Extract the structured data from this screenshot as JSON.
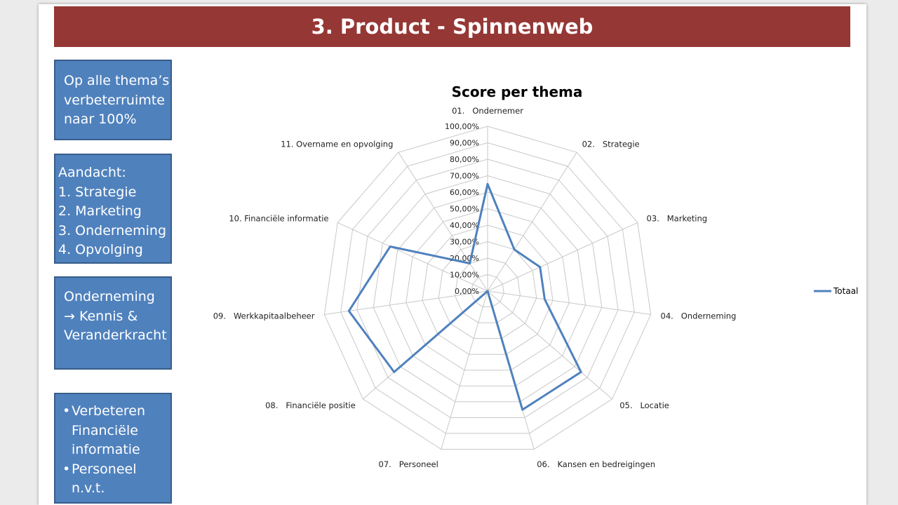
{
  "slide": {
    "title": "3. Product - Spinnenweb"
  },
  "notes": {
    "box1": [
      "Op alle thema’s",
      "verbeterruimte",
      "naar 100%"
    ],
    "box2": [
      "Aandacht:",
      "1. Strategie",
      "2. Marketing",
      "3. Onderneming",
      "4. Opvolging"
    ],
    "box3": [
      "Onderneming",
      "→ Kennis &",
      "Veranderkracht"
    ],
    "box4": [
      [
        "Verbeteren",
        "Financiële",
        "informatie"
      ],
      [
        "Personeel",
        "n.v.t."
      ]
    ]
  },
  "colors": {
    "title_bar": "#953735",
    "note_box": "#4f81bd",
    "series_line": "#4f81bd",
    "grid": "#c8c8c8"
  },
  "chart_data": {
    "type": "radar",
    "title": "Score per thema",
    "categories": [
      "01.   Ondernemer",
      "02.   Strategie",
      "03.   Marketing",
      "04.   Onderneming",
      "05.   Locatie",
      "06.   Kansen en bedreigingen",
      "07.   Personeel",
      "08.   Financiële positie",
      "09.   Werkkapitaalbeheer",
      "10. Financiële informatie",
      "11. Overname en opvolging"
    ],
    "axis_ticks": [
      "0,00%",
      "10,00%",
      "20,00%",
      "30,00%",
      "40,00%",
      "50,00%",
      "60,00%",
      "70,00%",
      "80,00%",
      "90,00%",
      "100,00%"
    ],
    "range": [
      0,
      1
    ],
    "grid": true,
    "legend_position": "right",
    "series": [
      {
        "name": "Totaal",
        "values": [
          0.65,
          0.3,
          0.35,
          0.35,
          0.75,
          0.75,
          0.0,
          0.75,
          0.85,
          0.65,
          0.2
        ]
      }
    ]
  }
}
